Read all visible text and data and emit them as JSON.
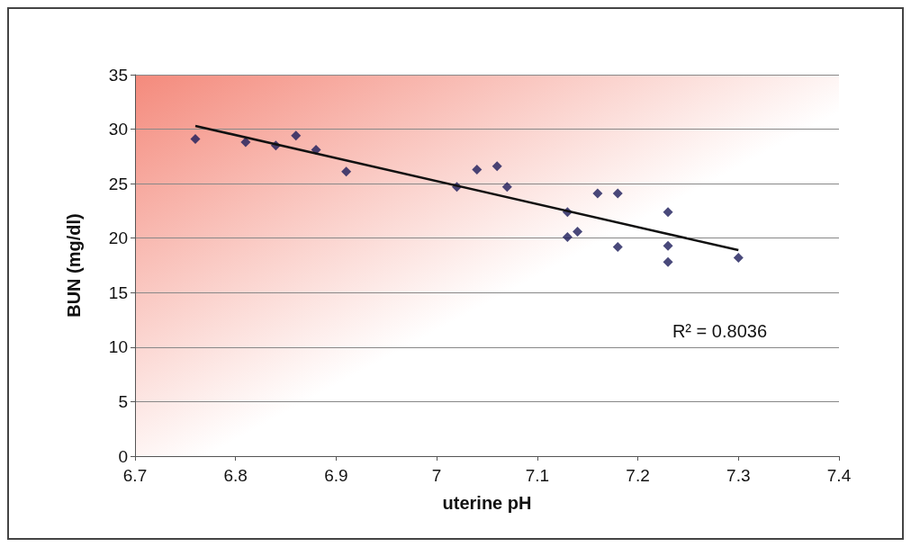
{
  "chart_data": {
    "type": "scatter",
    "xlabel": "uterine pH",
    "ylabel": "BUN (mg/dl)",
    "marker": "diamond",
    "grid": "y",
    "xlim": [
      6.7,
      7.4
    ],
    "xticks": [
      6.7,
      6.8,
      6.9,
      7,
      7.1,
      7.2,
      7.3,
      7.4
    ],
    "ylim": [
      0,
      35
    ],
    "yticks": [
      0,
      5,
      10,
      15,
      20,
      25,
      30,
      35
    ],
    "annotations": [
      "R² = 0.8036"
    ],
    "series": [
      {
        "color": "#1c1c5a",
        "x": [
          6.76,
          6.81,
          6.84,
          6.86,
          6.88,
          6.91,
          7.02,
          7.04,
          7.06,
          7.07,
          7.13,
          7.13,
          7.14,
          7.16,
          7.18,
          7.18,
          7.23,
          7.23,
          7.23,
          7.3
        ],
        "values": [
          29.1,
          28.8,
          28.5,
          29.4,
          28.1,
          26.1,
          24.7,
          26.3,
          26.6,
          24.7,
          22.4,
          20.1,
          20.6,
          24.1,
          24.1,
          19.2,
          22.4,
          19.3,
          17.8,
          18.2
        ]
      },
      {
        "type": "line",
        "color": "#111111",
        "marker": "none",
        "x": [
          6.76,
          7.3
        ],
        "values": [
          30.3,
          18.9
        ]
      }
    ]
  }
}
